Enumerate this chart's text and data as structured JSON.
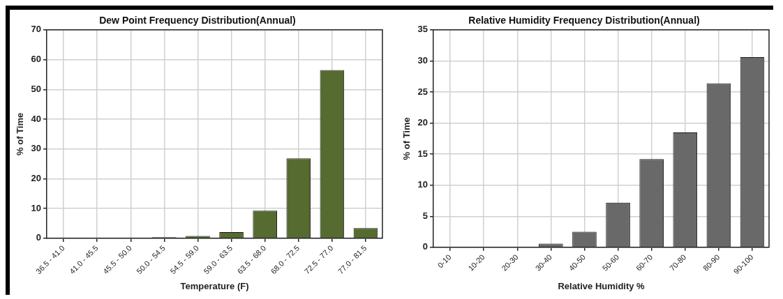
{
  "chart_data": [
    {
      "type": "bar",
      "title": "Dew Point Frequency Distribution(Annual)",
      "xlabel": "Temperature (F)",
      "ylabel": "% of Time",
      "categories": [
        "36.5 - 41.0",
        "41.0 - 45.5",
        "45.5 - 50.0",
        "50.0 - 54.5",
        "54.5 - 59.0",
        "59.0 - 63.5",
        "63.5 - 68.0",
        "68.0 - 72.5",
        "72.5 - 77.0",
        "77.0 - 81.5"
      ],
      "values": [
        0,
        0,
        0,
        0.4,
        0.8,
        2.1,
        9.3,
        26.8,
        56.5,
        3.4
      ],
      "color": "#556b2f",
      "ylim": [
        0,
        70
      ],
      "yticks": [
        0,
        10,
        20,
        30,
        40,
        50,
        60,
        70
      ],
      "grid": true,
      "legend": false
    },
    {
      "type": "bar",
      "title": "Relative Humidity Frequency Distribution(Annual)",
      "xlabel": "Relative Humidity %",
      "ylabel": "% of Time",
      "categories": [
        "0-10",
        "10-20",
        "20-30",
        "30-40",
        "40-50",
        "50-60",
        "60-70",
        "70-80",
        "80-90",
        "90-100"
      ],
      "values": [
        0,
        0,
        0,
        0.6,
        2.5,
        7.2,
        14.2,
        18.5,
        26.4,
        30.6
      ],
      "color": "#696969",
      "ylim": [
        0,
        35
      ],
      "yticks": [
        0,
        5,
        10,
        15,
        20,
        25,
        30,
        35
      ],
      "grid": true,
      "legend": false
    }
  ]
}
